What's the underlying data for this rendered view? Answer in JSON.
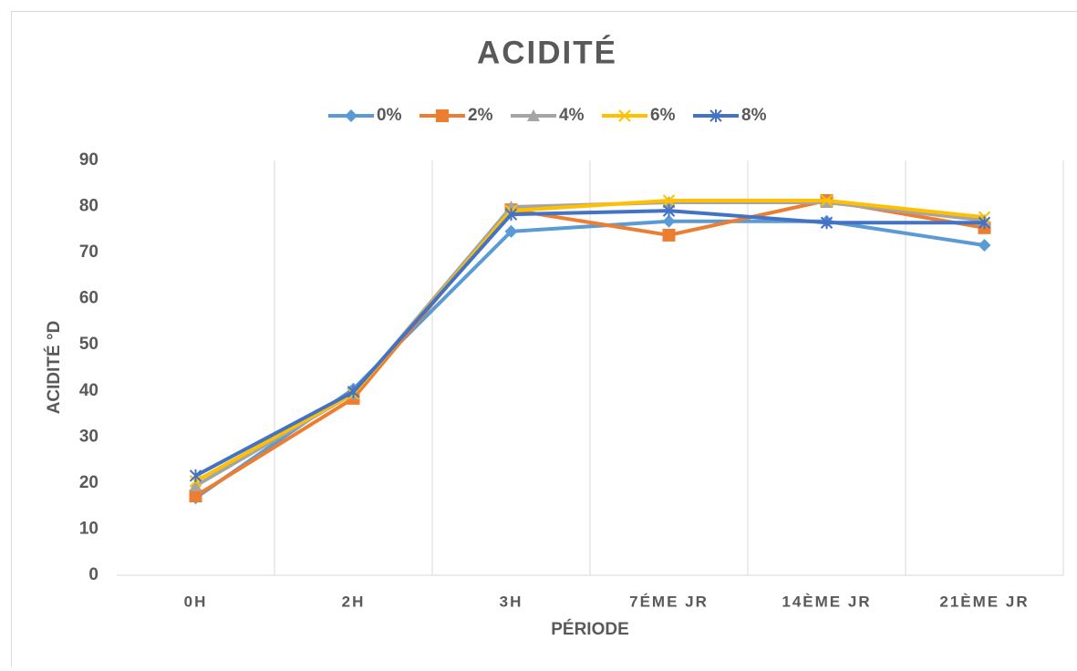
{
  "chart_data": {
    "type": "line",
    "title": "ACIDITÉ",
    "x_label": "PÉRIODE",
    "y_label": "ACIDITÉ °D",
    "categories": [
      "0H",
      "2H",
      "3H",
      "7ÉME JR",
      "14ÈME JR",
      "21ÈME JR"
    ],
    "series": [
      {
        "name": "0%",
        "color": "#5b9bd5",
        "marker": "diamond",
        "values": [
          16.8,
          40.4,
          74.6,
          76.8,
          76.8,
          71.6
        ]
      },
      {
        "name": "2%",
        "color": "#ed7d31",
        "marker": "square",
        "values": [
          17.2,
          38.4,
          79.3,
          73.8,
          81.3,
          75.4
        ]
      },
      {
        "name": "4%",
        "color": "#a5a5a5",
        "marker": "triangle",
        "values": [
          19.4,
          39.4,
          79.9,
          80.9,
          80.9,
          77.0
        ]
      },
      {
        "name": "6%",
        "color": "#ffc000",
        "marker": "x",
        "values": [
          20.4,
          39.4,
          79.1,
          81.3,
          81.3,
          77.7
        ]
      },
      {
        "name": "8%",
        "color": "#4472c4",
        "marker": "star",
        "values": [
          21.6,
          39.8,
          78.3,
          79.1,
          76.5,
          76.5
        ]
      }
    ],
    "ylim": [
      0,
      90
    ],
    "yticks": [
      0,
      10,
      20,
      30,
      40,
      50,
      60,
      70,
      80,
      90
    ],
    "grid": true,
    "legend": "top"
  }
}
